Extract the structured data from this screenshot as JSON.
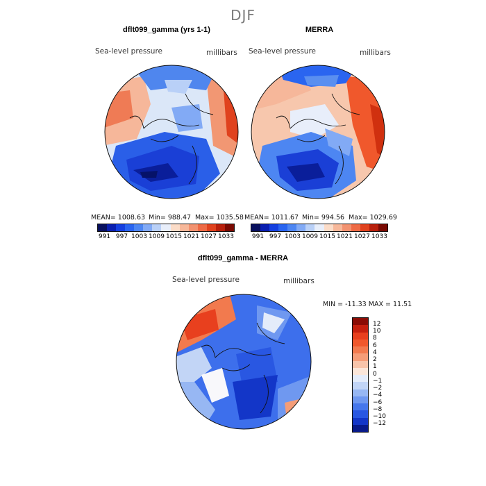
{
  "season": "DJF",
  "panels": [
    {
      "title": "dflt099_gamma (yrs 1-1)",
      "variable": "Sea-level pressure",
      "units": "millibars",
      "stats": {
        "mean": "MEAN= 1008.63",
        "min": "Min= 988.47",
        "max": "Max= 1035.58"
      }
    },
    {
      "title": "MERRA",
      "variable": "Sea-level pressure",
      "units": "millibars",
      "stats": {
        "mean": "MEAN= 1011.67",
        "min": "Min= 994.56",
        "max": "Max= 1029.69"
      }
    },
    {
      "title": "dflt099_gamma - MERRA",
      "variable": "Sea-level pressure",
      "units": "millibars",
      "stats": {
        "minmax": "MIN = -11.33 MAX =  11.51"
      }
    }
  ],
  "colorbar_abs": {
    "ticks": [
      "991",
      "997",
      "1003",
      "1009",
      "1015",
      "1021",
      "1027",
      "1033"
    ],
    "colors": [
      "#08105e",
      "#0a1fb0",
      "#1540e0",
      "#2a65f0",
      "#4d86f2",
      "#82aaf5",
      "#b9d0f7",
      "#e8eefa",
      "#fbdcc8",
      "#f7b89a",
      "#f29270",
      "#ee6a45",
      "#e0421e",
      "#b8200c",
      "#7a0a03"
    ]
  },
  "colorbar_diff": {
    "ticks": [
      "12",
      "10",
      "8",
      "6",
      "4",
      "2",
      "1",
      "0",
      "−1",
      "−2",
      "−4",
      "−6",
      "−8",
      "−10",
      "−12"
    ],
    "colors": [
      "#8a0c05",
      "#c5200e",
      "#e8401e",
      "#f0582c",
      "#f27a4e",
      "#f59d78",
      "#f8c4aa",
      "#fbe6d9",
      "#e4ecfa",
      "#c2d5f6",
      "#97b7f3",
      "#6f98f0",
      "#4677ec",
      "#2957e2",
      "#1336c8",
      "#081a8a"
    ]
  }
}
